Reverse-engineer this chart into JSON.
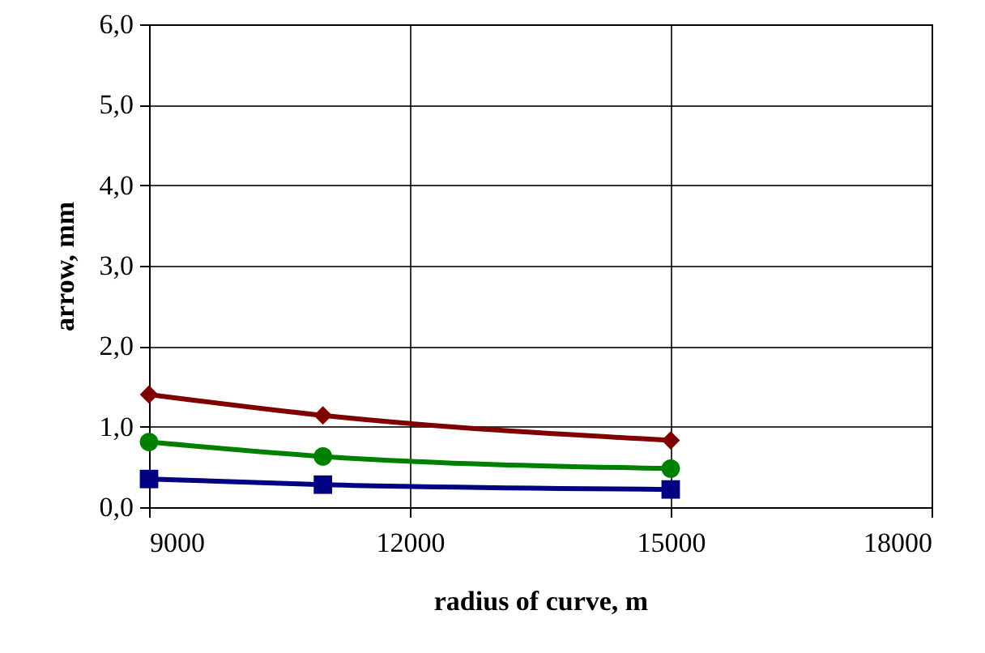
{
  "chart_data": {
    "type": "line",
    "xlabel": "radius of curve, m",
    "ylabel": "arrow, mm",
    "x": [
      9000,
      11000,
      15000
    ],
    "series": [
      {
        "color": "#800000",
        "values": [
          1.4,
          1.14,
          0.83
        ],
        "marker": "diamond"
      },
      {
        "color": "#008000",
        "values": [
          0.81,
          0.63,
          0.48
        ],
        "marker": "circle"
      },
      {
        "color": "#000080",
        "values": [
          0.35,
          0.28,
          0.22
        ],
        "marker": "square"
      }
    ],
    "xlim": [
      9000,
      18000
    ],
    "xticks": [
      9000,
      12000,
      15000,
      18000
    ],
    "ylim": [
      0,
      6
    ],
    "yticks": [
      {
        "value": 0,
        "label": "0,0"
      },
      {
        "value": 1,
        "label": "1,0"
      },
      {
        "value": 2,
        "label": "2,0"
      },
      {
        "value": 3,
        "label": "3,0"
      },
      {
        "value": 4,
        "label": "4,0"
      },
      {
        "value": 5,
        "label": "5,0"
      },
      {
        "value": 6,
        "label": "6,0"
      }
    ],
    "grid": true,
    "line_style": "solid"
  }
}
